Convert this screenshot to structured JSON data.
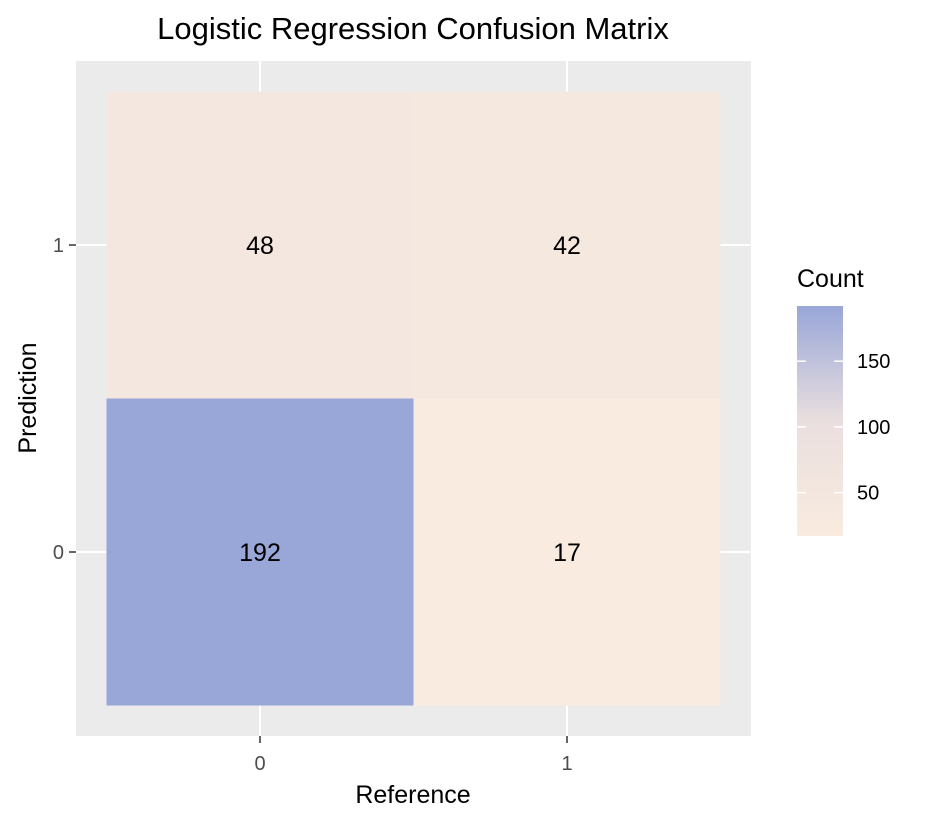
{
  "chart_data": {
    "type": "heatmap",
    "title": "Logistic Regression Confusion Matrix",
    "xlabel": "Reference",
    "ylabel": "Prediction",
    "x_categories": [
      "0",
      "1"
    ],
    "y_categories": [
      "0",
      "1"
    ],
    "cells": [
      {
        "reference": "0",
        "prediction": "1",
        "value": 48
      },
      {
        "reference": "1",
        "prediction": "1",
        "value": 42
      },
      {
        "reference": "0",
        "prediction": "0",
        "value": 192
      },
      {
        "reference": "1",
        "prediction": "0",
        "value": 17
      }
    ],
    "legend": {
      "title": "Count",
      "position": "right",
      "ticks": [
        50,
        100,
        150
      ],
      "range": [
        17,
        192
      ],
      "low_color": "#F9EBDF",
      "high_color": "#98A6D8"
    },
    "panel_background": "#EBEBEB",
    "grid": true
  }
}
